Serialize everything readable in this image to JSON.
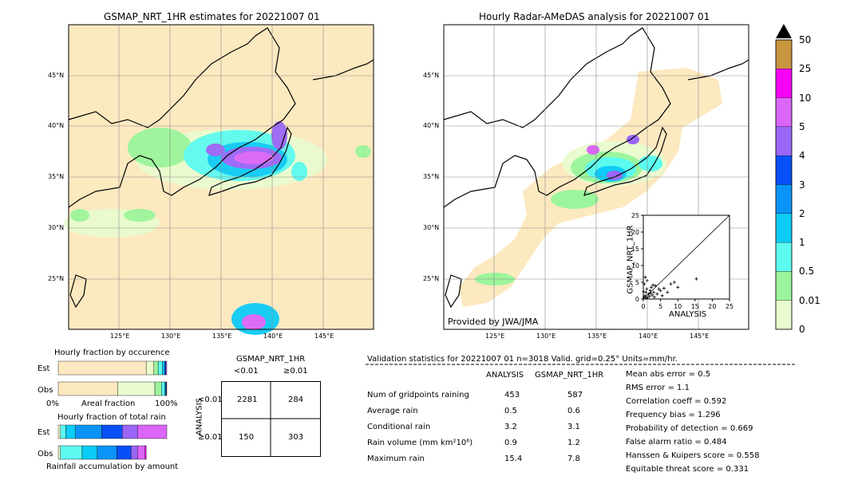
{
  "left_map": {
    "title": "GSMAP_NRT_1HR estimates for 20221007 01",
    "lat_labels": [
      "45°N",
      "40°N",
      "35°N",
      "30°N",
      "25°N"
    ],
    "lon_labels": [
      "125°E",
      "130°E",
      "135°E",
      "140°E",
      "145°E"
    ]
  },
  "right_map": {
    "title": "Hourly Radar-AMeDAS analysis for 20221007 01",
    "lat_labels": [
      "45°N",
      "40°N",
      "35°N",
      "30°N",
      "25°N"
    ],
    "lon_labels": [
      "125°E",
      "130°E",
      "135°E",
      "140°E",
      "145°E"
    ],
    "credit": "Provided by JWA/JMA"
  },
  "colorbar": {
    "labels": [
      "0",
      "0.01",
      "0.5",
      "1",
      "2",
      "3",
      "4",
      "5",
      "10",
      "25",
      "50"
    ],
    "colors": [
      "#fde9c0",
      "#e9fbcf",
      "#9cf59c",
      "#5cfbf0",
      "#0ccbf5",
      "#0b94f8",
      "#0750f8",
      "#9966f8",
      "#db66f8",
      "#f800f8",
      "#c8963f"
    ],
    "over_color": "#000000"
  },
  "scatter": {
    "ylabel": "GSMAP_NRT_1HR",
    "xlabel": "ANALYSIS",
    "ticks": [
      "0",
      "5",
      "10",
      "15",
      "20",
      "25"
    ]
  },
  "occurrence": {
    "title": "Hourly fraction by occurence",
    "rows": [
      "Est",
      "Obs"
    ],
    "axis_left": "0%",
    "axis_mid": "Areal fraction",
    "axis_right": "100%"
  },
  "total_rain": {
    "title": "Hourly fraction of total rain",
    "rows": [
      "Est",
      "Obs"
    ],
    "footer": "Rainfall accumulation by amount"
  },
  "contingency": {
    "title": "GSMAP_NRT_1HR",
    "col_labels": [
      "<0.01",
      "≥0.01"
    ],
    "row_axis": "ANALYSIS",
    "row_labels": [
      "<0.01",
      "≥0.01"
    ],
    "cells": [
      [
        "2281",
        "284"
      ],
      [
        "150",
        "303"
      ]
    ]
  },
  "validation": {
    "header": "Validation statistics for 20221007 01  n=3018 Valid. grid=0.25° Units=mm/hr.",
    "col_headers": [
      "ANALYSIS",
      "GSMAP_NRT_1HR"
    ],
    "rows": [
      {
        "label": "Num of gridpoints raining",
        "analysis": "453",
        "gsmap": "587"
      },
      {
        "label": "Average rain",
        "analysis": "0.5",
        "gsmap": "0.6"
      },
      {
        "label": "Conditional rain",
        "analysis": "3.2",
        "gsmap": "3.1"
      },
      {
        "label": "Rain volume (mm km²10⁶)",
        "analysis": "0.9",
        "gsmap": "1.2"
      },
      {
        "label": "Maximum rain",
        "analysis": "15.4",
        "gsmap": "7.8"
      }
    ],
    "scores": [
      "Mean abs error =    0.5",
      "RMS error =    1.1",
      "Correlation coeff =  0.592",
      "Frequency bias =  1.296",
      "Probability of detection =  0.669",
      "False alarm ratio =  0.484",
      "Hanssen & Kuipers score =  0.558",
      "Equitable threat score =  0.331"
    ]
  },
  "chart_data": [
    {
      "type": "scatter",
      "xlabel": "ANALYSIS",
      "ylabel": "GSMAP_NRT_1HR",
      "xlim": [
        0,
        25
      ],
      "ylim": [
        0,
        25
      ],
      "x": [
        0.2,
        0.5,
        0.8,
        1.0,
        1.2,
        1.5,
        2.0,
        2.3,
        2.6,
        3.0,
        3.5,
        4.0,
        4.5,
        5.0,
        5.5,
        6.0,
        7.0,
        8.0,
        9.0,
        10.0,
        15.4,
        0.3,
        0.6,
        1.1,
        1.8,
        2.8,
        3.2,
        0.1,
        0.9,
        2.1
      ],
      "y": [
        0.5,
        1.0,
        2.0,
        3.0,
        0.4,
        1.5,
        2.5,
        3.5,
        1.2,
        2.0,
        4.0,
        1.5,
        3.0,
        2.5,
        1.0,
        3.2,
        2.0,
        4.5,
        5.0,
        3.5,
        6.0,
        4.5,
        6.5,
        5.5,
        0.8,
        4.2,
        0.6,
        2.2,
        0.3,
        1.8
      ]
    },
    {
      "type": "table",
      "title": "Validation statistics for 20221007 01",
      "columns": [
        "ANALYSIS",
        "GSMAP_NRT_1HR"
      ],
      "rows": [
        [
          "Num of gridpoints raining",
          453,
          587
        ],
        [
          "Average rain",
          0.5,
          0.6
        ],
        [
          "Conditional rain",
          3.2,
          3.1
        ],
        [
          "Rain volume (mm km²10⁶)",
          0.9,
          1.2
        ],
        [
          "Maximum rain",
          15.4,
          7.8
        ]
      ]
    },
    {
      "type": "table",
      "title": "GSMAP_NRT_1HR",
      "columns": [
        "<0.01",
        "≥0.01"
      ],
      "rows": [
        [
          "<0.01",
          2281,
          284
        ],
        [
          "≥0.01",
          150,
          303
        ]
      ]
    },
    {
      "type": "bar",
      "title": "Hourly fraction by occurence",
      "series": [
        {
          "name": "Est",
          "values": [
            0.81,
            0.07,
            0.04,
            0.04,
            0.02,
            0.01,
            0.01
          ]
        },
        {
          "name": "Obs",
          "values": [
            0.55,
            0.34,
            0.06,
            0.03,
            0.01,
            0.005,
            0.005
          ]
        }
      ]
    },
    {
      "type": "bar",
      "title": "Hourly fraction of total rain",
      "series": [
        {
          "name": "Est",
          "values": [
            0.02,
            0.05,
            0.09,
            0.24,
            0.19,
            0.14,
            0.27
          ]
        },
        {
          "name": "Obs",
          "values": [
            0.02,
            0.2,
            0.14,
            0.18,
            0.13,
            0.06,
            0.07,
            0.01
          ]
        }
      ]
    }
  ]
}
